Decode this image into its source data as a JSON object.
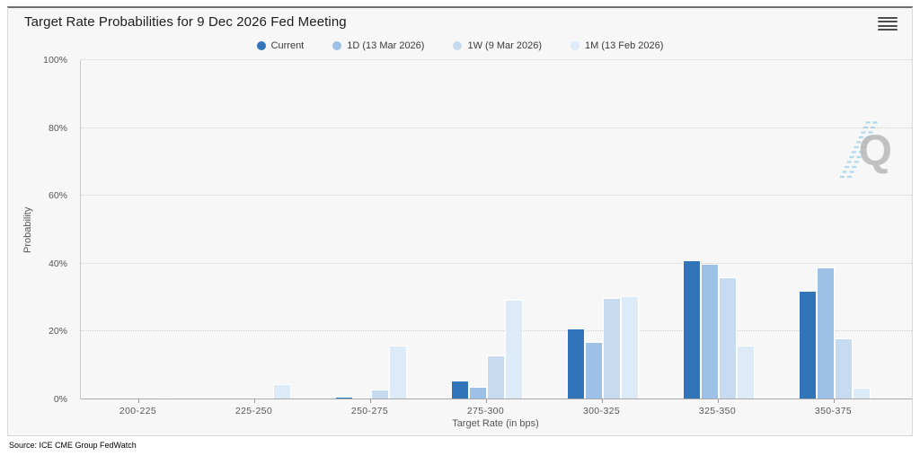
{
  "header": {
    "icons": {
      "context_menu": "hamburger-icon"
    }
  },
  "chart_data": {
    "type": "bar",
    "title": "Target Rate Probabilities for 9 Dec 2026 Fed Meeting",
    "xlabel": "Target Rate (in bps)",
    "ylabel": "Probability",
    "ylim": [
      0,
      100
    ],
    "yticks": [
      "0%",
      "20%",
      "40%",
      "60%",
      "80%",
      "100%"
    ],
    "grid": "horizontal-dotted",
    "legend_position": "top",
    "categories": [
      "200-225",
      "225-250",
      "250-275",
      "275-300",
      "300-325",
      "325-350",
      "350-375"
    ],
    "series": [
      {
        "name": "Current",
        "color": "#3274b9",
        "values": [
          0,
          0,
          0.9,
          5.5,
          21,
          41,
          32
        ]
      },
      {
        "name": "1D (13 Mar 2026)",
        "color": "#9cc0e6",
        "values": [
          0,
          0,
          0.5,
          3.7,
          17,
          40,
          39
        ]
      },
      {
        "name": "1W (9 Mar 2026)",
        "color": "#c7dbf0",
        "values": [
          0,
          0.6,
          3,
          13,
          30,
          36,
          18
        ]
      },
      {
        "name": "1M (13 Feb 2026)",
        "color": "#ddeaf8",
        "values": [
          0.6,
          4.5,
          16,
          29.5,
          30.5,
          16,
          3.5
        ]
      }
    ]
  },
  "watermark": {
    "letter": "Q",
    "accent_color": "#a3d5ea"
  },
  "footer": {
    "source": "Source: ICE CME Group FedWatch"
  }
}
